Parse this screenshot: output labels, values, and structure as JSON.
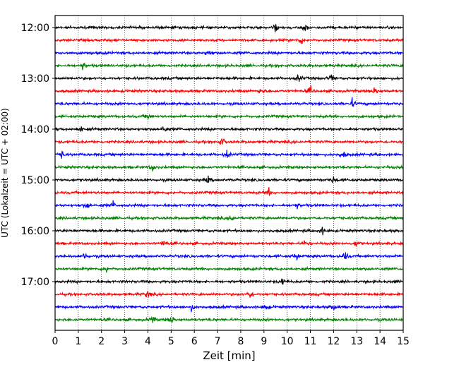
{
  "chart_data": {
    "type": "line",
    "title": "",
    "xlabel": "Zeit  [min]",
    "ylabel": "UTC (Lokalzeit = UTC + 02:00)",
    "xlim": [
      0,
      15
    ],
    "x_ticks": [
      "0",
      "1",
      "2",
      "3",
      "4",
      "5",
      "6",
      "7",
      "8",
      "9",
      "10",
      "11",
      "12",
      "13",
      "14",
      "15"
    ],
    "y_ticks": [
      "12:00",
      "13:00",
      "14:00",
      "15:00",
      "16:00",
      "17:00"
    ],
    "grid": "vertical dotted lines at each minute",
    "legend": "none",
    "trace_interval_minutes": 15,
    "traces_start": "12:00",
    "trace_count": 24,
    "trace_color_cycle": [
      "#000000",
      "#ff0000",
      "#0000ff",
      "#008000"
    ],
    "series": [
      {
        "start": "12:00",
        "color": "#000000",
        "events": [
          9.5,
          10.8
        ]
      },
      {
        "start": "12:15",
        "color": "#ff0000",
        "events": [
          10.6
        ]
      },
      {
        "start": "12:30",
        "color": "#0000ff",
        "events": [
          6.6
        ]
      },
      {
        "start": "12:45",
        "color": "#008000",
        "events": [
          1.2
        ]
      },
      {
        "start": "13:00",
        "color": "#000000",
        "events": [
          10.5,
          11.9
        ]
      },
      {
        "start": "13:15",
        "color": "#ff0000",
        "events": [
          8.9,
          11.0,
          13.8
        ]
      },
      {
        "start": "13:30",
        "color": "#0000ff",
        "events": [
          12.8
        ]
      },
      {
        "start": "13:45",
        "color": "#008000",
        "events": [
          4.0
        ]
      },
      {
        "start": "14:00",
        "color": "#000000",
        "events": [
          1.1,
          4.7
        ]
      },
      {
        "start": "14:15",
        "color": "#ff0000",
        "events": [
          7.2
        ]
      },
      {
        "start": "14:30",
        "color": "#0000ff",
        "events": [
          0.3,
          7.4,
          12.4
        ]
      },
      {
        "start": "14:45",
        "color": "#008000",
        "events": [
          4.2
        ]
      },
      {
        "start": "15:00",
        "color": "#000000",
        "events": [
          6.6,
          12.0
        ]
      },
      {
        "start": "15:15",
        "color": "#ff0000",
        "events": [
          9.2
        ]
      },
      {
        "start": "15:30",
        "color": "#0000ff",
        "events": [
          1.4,
          2.5,
          10.4
        ]
      },
      {
        "start": "15:45",
        "color": "#008000",
        "events": [
          7.6
        ]
      },
      {
        "start": "16:00",
        "color": "#000000",
        "events": [
          11.5
        ]
      },
      {
        "start": "16:15",
        "color": "#ff0000",
        "events": [
          4.7,
          10.8,
          13.0
        ]
      },
      {
        "start": "16:30",
        "color": "#0000ff",
        "events": [
          1.3,
          10.4,
          12.5
        ]
      },
      {
        "start": "16:45",
        "color": "#008000",
        "events": [
          2.2
        ]
      },
      {
        "start": "17:00",
        "color": "#000000",
        "events": [
          9.8
        ]
      },
      {
        "start": "17:15",
        "color": "#ff0000",
        "events": [
          4.0,
          8.4
        ]
      },
      {
        "start": "17:30",
        "color": "#0000ff",
        "events": [
          5.9,
          9.1,
          12.0
        ]
      },
      {
        "start": "17:45",
        "color": "#008000",
        "events": [
          4.2,
          5.0
        ]
      }
    ]
  }
}
